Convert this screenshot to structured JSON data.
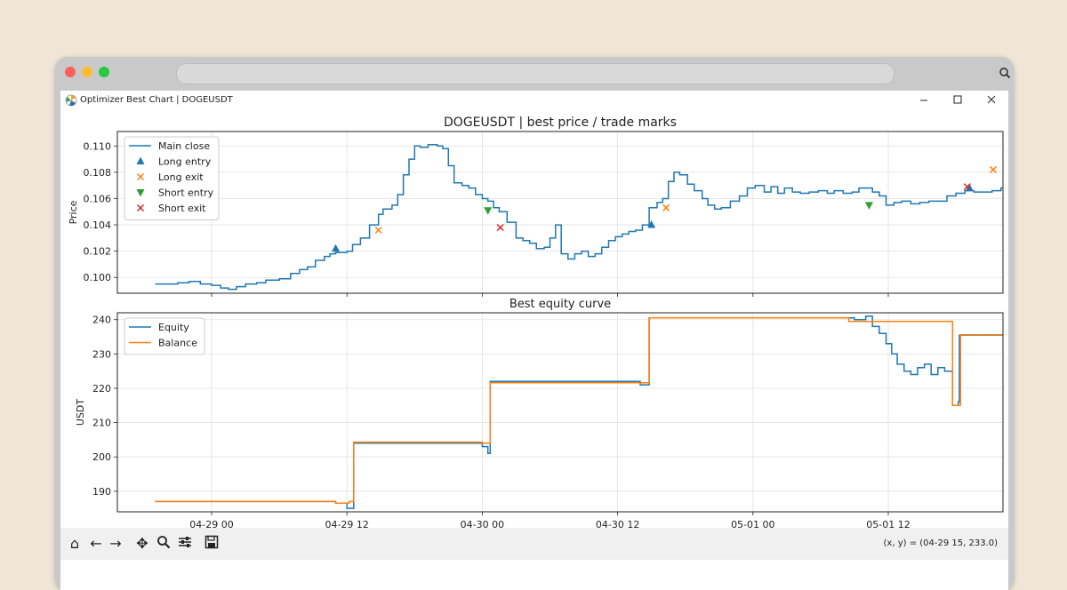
{
  "window": {
    "title": "Optimizer Best Chart | DOGEUSDT",
    "minimize_icon": "minimize-icon",
    "maximize_icon": "maximize-icon",
    "close_icon": "close-icon"
  },
  "toolbar": {
    "coords": "(x, y) = (04-29 15, 233.0)",
    "tools": [
      "home-icon",
      "back-icon",
      "forward-icon",
      "pan-icon",
      "zoom-icon",
      "configure-icon",
      "save-icon"
    ]
  },
  "colors": {
    "blue": "#1f77b4",
    "orange": "#ff7f0e",
    "green": "#2ca02c",
    "red": "#d62728"
  },
  "chart_data": [
    {
      "type": "line",
      "title": "DOGEUSDT | best price / trade marks",
      "ylabel": "Price",
      "xlabel": "",
      "x_ticks": [
        "04-29 00",
        "04-29 12",
        "04-30 00",
        "04-30 12",
        "05-01 00",
        "05-01 12"
      ],
      "x_range_hours": [
        -5,
        70.5
      ],
      "ylim": [
        0.0988,
        0.1111
      ],
      "y_ticks": [
        0.1,
        0.102,
        0.104,
        0.106,
        0.108,
        0.11
      ],
      "y_tick_labels": [
        "0.100",
        "0.102",
        "0.104",
        "0.106",
        "0.108",
        "0.110"
      ],
      "grid": true,
      "legend": "top-left",
      "series": [
        {
          "name": "Main close",
          "style": "step",
          "points": [
            [
              -5,
              0.0995
            ],
            [
              -3.8,
              0.0995
            ],
            [
              -3,
              0.0996
            ],
            [
              -2,
              0.0997
            ],
            [
              -1,
              0.0995
            ],
            [
              0,
              0.0994
            ],
            [
              0.8,
              0.0992
            ],
            [
              1.5,
              0.0991
            ],
            [
              2.2,
              0.0993
            ],
            [
              3,
              0.0995
            ],
            [
              4,
              0.0996
            ],
            [
              4.8,
              0.0998
            ],
            [
              6,
              0.0999
            ],
            [
              7,
              0.1003
            ],
            [
              7.8,
              0.1006
            ],
            [
              8.5,
              0.1008
            ],
            [
              9.2,
              0.1013
            ],
            [
              10,
              0.1016
            ],
            [
              10.5,
              0.1018
            ],
            [
              11,
              0.1019
            ],
            [
              12,
              0.102
            ],
            [
              12.5,
              0.1025
            ],
            [
              13.2,
              0.103
            ],
            [
              14,
              0.104
            ],
            [
              14.8,
              0.1048
            ],
            [
              15.2,
              0.1052
            ],
            [
              16,
              0.1055
            ],
            [
              16.5,
              0.1063
            ],
            [
              17,
              0.1078
            ],
            [
              17.5,
              0.109
            ],
            [
              18,
              0.11
            ],
            [
              18.5,
              0.1099
            ],
            [
              19.2,
              0.1101
            ],
            [
              20,
              0.11
            ],
            [
              20.5,
              0.1098
            ],
            [
              21,
              0.1085
            ],
            [
              21.5,
              0.1072
            ],
            [
              22.2,
              0.107
            ],
            [
              22.8,
              0.1068
            ],
            [
              23.4,
              0.1063
            ],
            [
              24,
              0.106
            ],
            [
              24.5,
              0.1058
            ],
            [
              25,
              0.1053
            ],
            [
              25.5,
              0.105
            ],
            [
              26.2,
              0.1042
            ],
            [
              27,
              0.103
            ],
            [
              27.6,
              0.1028
            ],
            [
              28.2,
              0.1026
            ],
            [
              28.8,
              0.1022
            ],
            [
              29.5,
              0.1023
            ],
            [
              30,
              0.103
            ],
            [
              30.5,
              0.104
            ],
            [
              31,
              0.1018
            ],
            [
              31.6,
              0.1014
            ],
            [
              32.2,
              0.1018
            ],
            [
              32.8,
              0.102
            ],
            [
              33.4,
              0.1016
            ],
            [
              34,
              0.1018
            ],
            [
              34.6,
              0.1023
            ],
            [
              35.2,
              0.1028
            ],
            [
              35.8,
              0.1031
            ],
            [
              36.4,
              0.1033
            ],
            [
              37,
              0.1035
            ],
            [
              37.6,
              0.1036
            ],
            [
              38.2,
              0.104
            ],
            [
              38.8,
              0.1053
            ],
            [
              39.5,
              0.1057
            ],
            [
              40,
              0.106
            ],
            [
              40.5,
              0.1073
            ],
            [
              41,
              0.108
            ],
            [
              41.5,
              0.1078
            ],
            [
              42.2,
              0.1071
            ],
            [
              42.8,
              0.1066
            ],
            [
              43.5,
              0.106
            ],
            [
              44,
              0.1055
            ],
            [
              44.6,
              0.1052
            ],
            [
              45.2,
              0.1053
            ],
            [
              46,
              0.1058
            ],
            [
              46.8,
              0.1062
            ],
            [
              47.5,
              0.1068
            ],
            [
              48.2,
              0.107
            ],
            [
              49,
              0.1065
            ],
            [
              49.6,
              0.1069
            ],
            [
              50.2,
              0.1064
            ],
            [
              50.8,
              0.1068
            ],
            [
              51.5,
              0.1065
            ],
            [
              52.2,
              0.1064
            ],
            [
              53,
              0.1065
            ],
            [
              53.8,
              0.1066
            ],
            [
              54.6,
              0.1064
            ],
            [
              55.2,
              0.1066
            ],
            [
              56,
              0.1064
            ],
            [
              56.8,
              0.1065
            ],
            [
              57.4,
              0.1068
            ],
            [
              58,
              0.1068
            ],
            [
              58.6,
              0.1065
            ],
            [
              59.2,
              0.1062
            ],
            [
              59.8,
              0.1055
            ],
            [
              60.5,
              0.1057
            ],
            [
              61.2,
              0.1058
            ],
            [
              62,
              0.1056
            ],
            [
              62.8,
              0.1057
            ],
            [
              63.6,
              0.1058
            ],
            [
              64.4,
              0.1058
            ],
            [
              65.2,
              0.1062
            ],
            [
              66,
              0.1064
            ],
            [
              66.8,
              0.1066
            ],
            [
              67.6,
              0.1065
            ],
            [
              68.4,
              0.1065
            ],
            [
              69.2,
              0.1066
            ],
            [
              70,
              0.1068
            ],
            [
              70.8,
              0.1074
            ],
            [
              71.6,
              0.108
            ],
            [
              72.4,
              0.1085
            ],
            [
              73.2,
              0.1082
            ],
            [
              74,
              0.109
            ],
            [
              74.8,
              0.1093
            ],
            [
              75.6,
              0.1088
            ],
            [
              76.4,
              0.109
            ],
            [
              77.2,
              0.1089
            ],
            [
              78,
              0.1085
            ],
            [
              78.8,
              0.1088
            ],
            [
              79.6,
              0.1086
            ],
            [
              80.4,
              0.1085
            ],
            [
              81.2,
              0.1082
            ],
            [
              82,
              0.1084
            ],
            [
              82.8,
              0.1083
            ],
            [
              83.4,
              0.1086
            ],
            [
              84.2,
              0.1081
            ],
            [
              85,
              0.108
            ],
            [
              85.8,
              0.1082
            ],
            [
              86.4,
              0.1084
            ],
            [
              87,
              0.1083
            ],
            [
              88,
              0.1085
            ],
            [
              88.6,
              0.1089
            ],
            [
              89.2,
              0.1088
            ],
            [
              90,
              0.109
            ],
            [
              90.8,
              0.1091
            ],
            [
              91.4,
              0.1094
            ],
            [
              92,
              0.1095
            ],
            [
              92.6,
              0.1096
            ],
            [
              93.4,
              0.1097
            ],
            [
              94.2,
              0.1097
            ],
            [
              95,
              0.1096
            ],
            [
              95.8,
              0.1094
            ],
            [
              96.6,
              0.1091
            ],
            [
              97.2,
              0.1089
            ],
            [
              97.8,
              0.1086
            ],
            [
              98.4,
              0.109
            ]
          ]
        },
        {
          "name": "Long entry",
          "style": "marker-triangle-up",
          "points": [
            [
              11,
              0.1022
            ],
            [
              39,
              0.104
            ],
            [
              67.2,
              0.1068
            ],
            [
              89,
              0.1089
            ]
          ]
        },
        {
          "name": "Long exit",
          "style": "marker-x",
          "points": [
            [
              14.8,
              0.1036
            ],
            [
              40.3,
              0.1053
            ],
            [
              69.3,
              0.1082
            ],
            [
              91.8,
              0.1104
            ]
          ]
        },
        {
          "name": "Short entry",
          "style": "marker-triangle-down",
          "points": [
            [
              24.5,
              0.1051
            ],
            [
              58.3,
              0.1055
            ],
            [
              84.9,
              0.1077
            ]
          ]
        },
        {
          "name": "Short exit",
          "style": "marker-x",
          "points": [
            [
              25.6,
              0.1038
            ],
            [
              67.0,
              0.1069
            ],
            [
              89.2,
              0.109
            ]
          ]
        }
      ]
    },
    {
      "type": "line",
      "title": "Best equity curve",
      "ylabel": "USDT",
      "xlabel": "Time",
      "x_ticks": [
        "04-29 00",
        "04-29 12",
        "04-30 00",
        "04-30 12",
        "05-01 00",
        "05-01 12"
      ],
      "ylim": [
        184,
        242
      ],
      "y_ticks": [
        190,
        200,
        210,
        220,
        230,
        240
      ],
      "y_tick_labels": [
        "190",
        "200",
        "210",
        "220",
        "230",
        "240"
      ],
      "grid": true,
      "legend": "top-left",
      "series": [
        {
          "name": "Equity",
          "style": "step",
          "points": [
            [
              -5,
              187
            ],
            [
              10.5,
              187
            ],
            [
              11,
              186.5
            ],
            [
              11.5,
              186.5
            ],
            [
              12,
              185
            ],
            [
              12.6,
              204
            ],
            [
              23.6,
              204
            ],
            [
              24,
              203
            ],
            [
              24.5,
              201
            ],
            [
              24.7,
              222
            ],
            [
              37.6,
              222
            ],
            [
              38,
              221
            ],
            [
              38.5,
              221
            ],
            [
              38.8,
              240.5
            ],
            [
              56,
              240.5
            ],
            [
              57,
              240
            ],
            [
              57.6,
              240
            ],
            [
              58,
              241
            ],
            [
              58.6,
              238
            ],
            [
              59.2,
              236
            ],
            [
              59.8,
              233
            ],
            [
              60.3,
              230
            ],
            [
              60.8,
              227
            ],
            [
              61.4,
              225
            ],
            [
              62,
              224
            ],
            [
              62.6,
              226
            ],
            [
              63.2,
              227
            ],
            [
              63.8,
              224
            ],
            [
              64.4,
              226
            ],
            [
              65,
              225
            ],
            [
              65.4,
              225
            ],
            [
              65.7,
              215
            ],
            [
              66.2,
              216
            ],
            [
              66.3,
              235.5
            ],
            [
              85.6,
              235.5
            ],
            [
              86,
              232
            ],
            [
              86.5,
              228
            ],
            [
              86.9,
              224
            ],
            [
              87.2,
              214
            ],
            [
              87.5,
              211
            ],
            [
              88.3,
              211.5
            ],
            [
              88.9,
              214
            ],
            [
              89.3,
              212
            ],
            [
              89.7,
              233
            ],
            [
              98.4,
              233
            ]
          ]
        },
        {
          "name": "Balance",
          "style": "step",
          "points": [
            [
              -5,
              187
            ],
            [
              10.5,
              187
            ],
            [
              11,
              186.5
            ],
            [
              11.8,
              186.5
            ],
            [
              12.2,
              187
            ],
            [
              12.6,
              204.3
            ],
            [
              23.6,
              204.3
            ],
            [
              24,
              204
            ],
            [
              24.5,
              204
            ],
            [
              24.7,
              221.6
            ],
            [
              38.5,
              221.6
            ],
            [
              38.8,
              240.5
            ],
            [
              56,
              240.5
            ],
            [
              56.5,
              239.5
            ],
            [
              65.4,
              239.5
            ],
            [
              65.7,
              215
            ],
            [
              66.2,
              215
            ],
            [
              66.4,
              235.6
            ],
            [
              86.8,
              235
            ],
            [
              87.2,
              213.5
            ],
            [
              88.8,
              213.5
            ],
            [
              89.3,
              213.5
            ],
            [
              89.7,
              232.8
            ],
            [
              98.4,
              232.8
            ]
          ]
        }
      ]
    }
  ]
}
